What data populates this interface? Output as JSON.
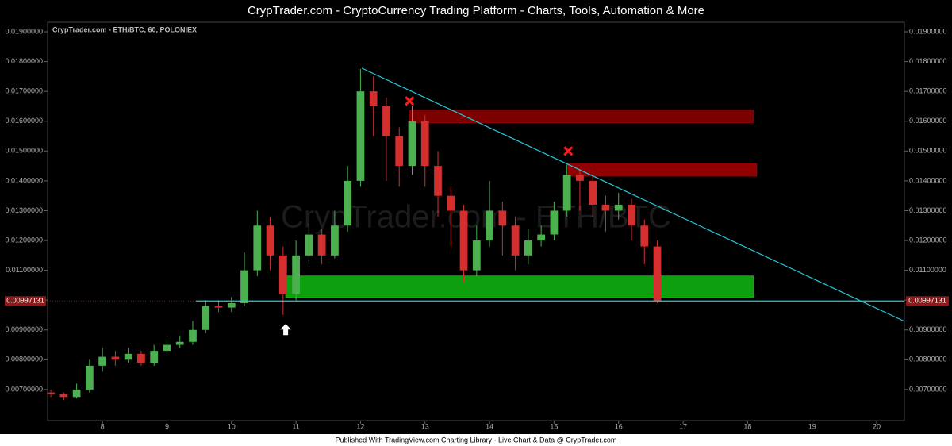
{
  "header": {
    "title": "CrypTrader.com  -  CryptoCurrency Trading Platform  -  Charts, Tools, Automation & More"
  },
  "footer": {
    "text": "Published With TradingView.com Charting Library - Live Chart & Data @ CrypTrader.com"
  },
  "chart_data": {
    "type": "candlestick",
    "title": "CrypTrader.com - ETH/BTC, 60, POLONIEX",
    "watermark": "CrypTrader.com - ETH/BTC",
    "up_color": "#4caf50",
    "down_color": "#d32f2f",
    "xlim": [
      7.15,
      20.43
    ],
    "xticks": [
      8,
      9,
      10,
      11,
      12,
      13,
      14,
      15,
      16,
      17,
      18,
      19,
      20
    ],
    "ylim": [
      0.00596,
      0.01932
    ],
    "yticks": [
      {
        "value": 0.007,
        "label": "0.00700000"
      },
      {
        "value": 0.008,
        "label": "0.00800000"
      },
      {
        "value": 0.009,
        "label": "0.00900000"
      },
      {
        "value": 0.01,
        "label": "0.01000000"
      },
      {
        "value": 0.011,
        "label": "0.01100000"
      },
      {
        "value": 0.012,
        "label": "0.01200000"
      },
      {
        "value": 0.013,
        "label": "0.01300000"
      },
      {
        "value": 0.014,
        "label": "0.01400000"
      },
      {
        "value": 0.015,
        "label": "0.01500000"
      },
      {
        "value": 0.016,
        "label": "0.01600000"
      },
      {
        "value": 0.017,
        "label": "0.01700000"
      },
      {
        "value": 0.018,
        "label": "0.01800000"
      },
      {
        "value": 0.019,
        "label": "0.01900000"
      }
    ],
    "last_price": {
      "value": 0.00997131,
      "label": "0.00997131",
      "color": "#8b1a1a"
    },
    "candles": {
      "x": [
        7.2,
        7.4,
        7.6,
        7.8,
        8,
        8.2,
        8.4,
        8.6,
        8.8,
        9,
        9.2,
        9.4,
        9.6,
        9.8,
        10,
        10.2,
        10.4,
        10.6,
        10.8,
        11,
        11.2,
        11.4,
        11.6,
        11.8,
        12,
        12.2,
        12.4,
        12.6,
        12.8,
        13,
        13.2,
        13.4,
        13.6,
        13.8,
        14,
        14.2,
        14.4,
        14.6,
        14.8,
        15,
        15.2,
        15.4,
        15.6,
        15.8,
        16,
        16.2,
        16.4,
        16.6
      ],
      "open": [
        0.0069,
        0.00685,
        0.00675,
        0.007,
        0.0078,
        0.0081,
        0.008,
        0.0082,
        0.0079,
        0.0083,
        0.0085,
        0.0086,
        0.009,
        0.0098,
        0.00975,
        0.0099,
        0.011,
        0.0125,
        0.0115,
        0.0102,
        0.0115,
        0.0122,
        0.0115,
        0.0125,
        0.014,
        0.017,
        0.0165,
        0.0155,
        0.0145,
        0.016,
        0.0145,
        0.0135,
        0.013,
        0.011,
        0.012,
        0.013,
        0.0125,
        0.0115,
        0.012,
        0.0122,
        0.013,
        0.0142,
        0.014,
        0.0132,
        0.013,
        0.0132,
        0.0125,
        0.0118
      ],
      "high": [
        0.007,
        0.0069,
        0.0072,
        0.008,
        0.0084,
        0.0083,
        0.0084,
        0.0083,
        0.0085,
        0.0087,
        0.0088,
        0.0093,
        0.01,
        0.01,
        0.0101,
        0.0116,
        0.013,
        0.0128,
        0.0118,
        0.012,
        0.0126,
        0.0124,
        0.013,
        0.0145,
        0.01775,
        0.0175,
        0.0168,
        0.0158,
        0.0165,
        0.0162,
        0.015,
        0.0138,
        0.0132,
        0.0125,
        0.014,
        0.0133,
        0.0128,
        0.0124,
        0.0125,
        0.0133,
        0.01455,
        0.0144,
        0.0142,
        0.0135,
        0.0136,
        0.0134,
        0.0127,
        0.012
      ],
      "low": [
        0.00675,
        0.00665,
        0.0067,
        0.0069,
        0.0076,
        0.0078,
        0.0079,
        0.0078,
        0.0078,
        0.0082,
        0.0084,
        0.0085,
        0.0089,
        0.0096,
        0.0096,
        0.0098,
        0.0108,
        0.011,
        0.0095,
        0.01,
        0.0112,
        0.0112,
        0.0114,
        0.0123,
        0.0138,
        0.0155,
        0.014,
        0.0138,
        0.0142,
        0.0138,
        0.0128,
        0.0118,
        0.0106,
        0.0108,
        0.0118,
        0.0115,
        0.011,
        0.0112,
        0.0118,
        0.012,
        0.0128,
        0.013,
        0.0128,
        0.0123,
        0.0127,
        0.012,
        0.0112,
        0.0099
      ],
      "close": [
        0.00685,
        0.00675,
        0.007,
        0.0078,
        0.0081,
        0.008,
        0.0082,
        0.0079,
        0.0083,
        0.0085,
        0.0086,
        0.009,
        0.0098,
        0.00975,
        0.0099,
        0.011,
        0.0125,
        0.0115,
        0.0102,
        0.0115,
        0.0122,
        0.0115,
        0.0125,
        0.014,
        0.017,
        0.0165,
        0.0155,
        0.0145,
        0.016,
        0.0145,
        0.0135,
        0.013,
        0.011,
        0.012,
        0.013,
        0.0125,
        0.0115,
        0.012,
        0.0122,
        0.013,
        0.0142,
        0.014,
        0.0132,
        0.013,
        0.0132,
        0.0125,
        0.0118,
        0.00997131
      ]
    },
    "rects": [
      {
        "x": [
          12.76,
          18.09
        ],
        "y": [
          0.01595,
          0.01637
        ],
        "color": "#8b0000"
      },
      {
        "x": [
          15.22,
          18.14
        ],
        "y": [
          0.01416,
          0.01458
        ],
        "color": "#a00000"
      },
      {
        "x": [
          10.84,
          18.09
        ],
        "y": [
          0.01009,
          0.01081
        ],
        "color": "#10b010"
      }
    ],
    "lines": [
      {
        "x": [
          12.02,
          20.43
        ],
        "y": [
          0.01778,
          0.00929
        ],
        "color": "#26c6da"
      },
      {
        "x": [
          9.45,
          20.43
        ],
        "y": [
          0.00997131,
          0.00997131
        ],
        "color": "#26c6da"
      }
    ],
    "markers": [
      {
        "type": "cross",
        "x": 12.76,
        "y": 0.01668,
        "color": "#ff1a1a"
      },
      {
        "type": "cross",
        "x": 15.22,
        "y": 0.015,
        "color": "#ff1a1a"
      },
      {
        "type": "arrow",
        "x": 10.84,
        "y": 0.0092,
        "color": "#ffffff"
      }
    ]
  }
}
